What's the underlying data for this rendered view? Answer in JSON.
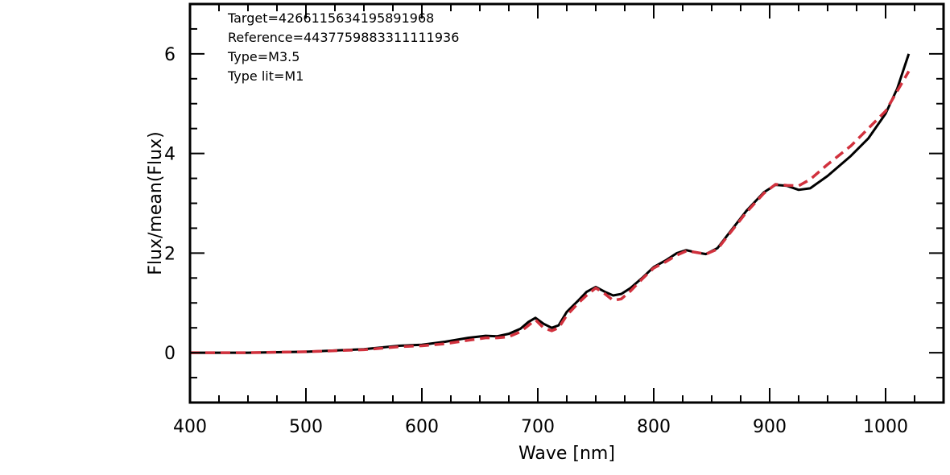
{
  "chart_data": {
    "type": "line",
    "title": "",
    "xlabel": "Wave [nm]",
    "ylabel": "Flux/mean(Flux)",
    "xlim": [
      400,
      1050
    ],
    "ylim": [
      -1,
      7
    ],
    "x_ticks": [
      400,
      500,
      600,
      700,
      800,
      900,
      1000
    ],
    "y_ticks": [
      0,
      2,
      4,
      6
    ],
    "x_minor_step": 25,
    "y_minor_step": 0.5,
    "grid": false,
    "annotations": [
      "Target=4266115634195891968",
      "Reference=4437759883311111936",
      "Type=M3.5",
      "Type lit=M1"
    ],
    "series": [
      {
        "color": "#000000",
        "style": "solid",
        "x": [
          400,
          450,
          500,
          550,
          580,
          600,
          620,
          640,
          655,
          665,
          675,
          685,
          692,
          698,
          705,
          712,
          718,
          725,
          735,
          742,
          750,
          758,
          765,
          772,
          780,
          790,
          800,
          810,
          820,
          828,
          835,
          845,
          855,
          865,
          880,
          895,
          905,
          915,
          925,
          935,
          950,
          970,
          985,
          1000,
          1010,
          1020
        ],
        "y": [
          0,
          0,
          0.02,
          0.07,
          0.14,
          0.16,
          0.22,
          0.3,
          0.34,
          0.33,
          0.38,
          0.48,
          0.62,
          0.7,
          0.58,
          0.5,
          0.55,
          0.82,
          1.05,
          1.22,
          1.32,
          1.22,
          1.15,
          1.18,
          1.3,
          1.5,
          1.72,
          1.85,
          2.0,
          2.06,
          2.02,
          1.98,
          2.1,
          2.4,
          2.85,
          3.22,
          3.37,
          3.35,
          3.27,
          3.3,
          3.55,
          3.95,
          4.3,
          4.8,
          5.3,
          6.0
        ]
      },
      {
        "color": "#d1313d",
        "style": "dashed",
        "x": [
          400,
          450,
          500,
          550,
          580,
          600,
          620,
          640,
          655,
          665,
          675,
          685,
          692,
          698,
          705,
          712,
          718,
          725,
          735,
          742,
          750,
          758,
          765,
          772,
          780,
          790,
          800,
          810,
          820,
          828,
          835,
          845,
          855,
          865,
          880,
          895,
          905,
          915,
          925,
          935,
          950,
          970,
          985,
          1000,
          1010,
          1020
        ],
        "y": [
          0,
          0,
          0.02,
          0.06,
          0.12,
          0.14,
          0.18,
          0.25,
          0.3,
          0.3,
          0.32,
          0.42,
          0.55,
          0.66,
          0.5,
          0.44,
          0.5,
          0.75,
          1.0,
          1.15,
          1.3,
          1.18,
          1.05,
          1.08,
          1.24,
          1.48,
          1.7,
          1.82,
          1.96,
          2.04,
          2.02,
          1.98,
          2.08,
          2.38,
          2.82,
          3.2,
          3.38,
          3.36,
          3.35,
          3.48,
          3.78,
          4.15,
          4.5,
          4.85,
          5.25,
          5.65
        ]
      }
    ]
  }
}
